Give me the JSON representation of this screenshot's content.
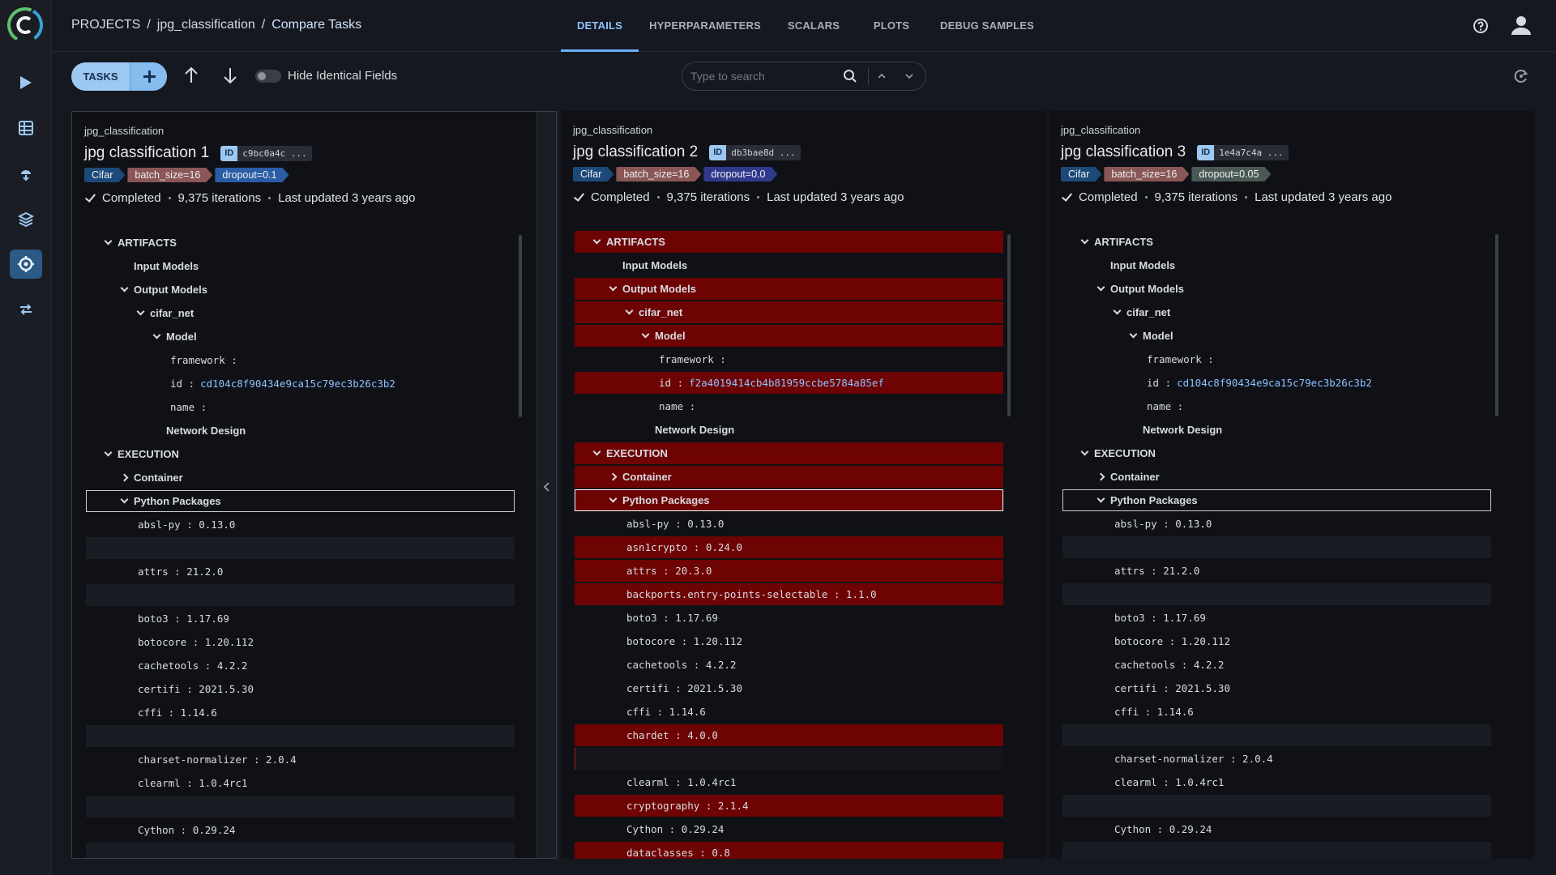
{
  "header": {
    "breadcrumb": [
      "PROJECTS",
      "jpg_classification",
      "Compare Tasks"
    ],
    "breadcrumb_separator": "/",
    "tabs": [
      "DETAILS",
      "HYPERPARAMETERS",
      "SCALARS",
      "PLOTS",
      "DEBUG SAMPLES"
    ],
    "active_tab": 0
  },
  "toolbar": {
    "tasks_button": "TASKS",
    "toggle_label": "Hide Identical Fields",
    "search_placeholder": "Type to search"
  },
  "id_badge_label": "ID",
  "tasks": [
    {
      "project": "jpg_classification",
      "name": "jpg classification 1",
      "id": "c9bc0a4c ...",
      "selected": true,
      "tags": [
        {
          "text": "Cifar",
          "color": "#1c4a78"
        },
        {
          "text": "batch_size=16",
          "color": "#8a5656"
        },
        {
          "text": "dropout=0.1",
          "color": "#2b5ca6"
        }
      ],
      "status": "Completed",
      "iterations": "9,375 iterations",
      "updated": "Last updated 3 years ago",
      "tree": [
        {
          "label": "ARTIFACTS",
          "open": true,
          "children": [
            {
              "label": "Input Models"
            },
            {
              "label": "Output Models",
              "open": true,
              "children": [
                {
                  "label": "cifar_net",
                  "open": true,
                  "children": [
                    {
                      "label": "Model",
                      "open": true,
                      "children": [
                        {
                          "text": "framework :"
                        },
                        {
                          "text": "id :",
                          "value": "cd104c8f90434e9ca15c79ec3b26c3b2"
                        },
                        {
                          "text": "name :"
                        }
                      ]
                    },
                    {
                      "label": "Network Design"
                    }
                  ]
                }
              ]
            }
          ]
        },
        {
          "label": "EXECUTION",
          "open": true,
          "children": [
            {
              "label": "Container",
              "open": false
            },
            {
              "label": "Python Packages",
              "open": true,
              "selected": true,
              "children": [
                {
                  "text": "absl-py : 0.13.0"
                },
                null,
                {
                  "text": "attrs : 21.2.0"
                },
                null,
                {
                  "text": "boto3 : 1.17.69"
                },
                {
                  "text": "botocore : 1.20.112"
                },
                {
                  "text": "cachetools : 4.2.2"
                },
                {
                  "text": "certifi : 2021.5.30"
                },
                {
                  "text": "cffi : 1.14.6"
                },
                null,
                {
                  "text": "charset-normalizer : 2.0.4"
                },
                {
                  "text": "clearml : 1.0.4rc1"
                },
                null,
                {
                  "text": "Cython : 0.29.24"
                },
                null
              ]
            }
          ]
        }
      ]
    },
    {
      "project": "jpg_classification",
      "name": "jpg classification 2",
      "id": "db3bae8d ...",
      "selected": false,
      "tags": [
        {
          "text": "Cifar",
          "color": "#1c4a78"
        },
        {
          "text": "batch_size=16",
          "color": "#8a5656"
        },
        {
          "text": "dropout=0.0",
          "color": "#2f3a8a"
        }
      ],
      "status": "Completed",
      "iterations": "9,375 iterations",
      "updated": "Last updated 3 years ago",
      "tree": [
        {
          "label": "ARTIFACTS",
          "open": true,
          "diff": true,
          "children": [
            {
              "label": "Input Models"
            },
            {
              "label": "Output Models",
              "open": true,
              "diff": true,
              "children": [
                {
                  "label": "cifar_net",
                  "open": true,
                  "diff": true,
                  "children": [
                    {
                      "label": "Model",
                      "open": true,
                      "diff": true,
                      "children": [
                        {
                          "text": "framework :"
                        },
                        {
                          "text": "id :",
                          "value": "f2a4019414cb4b81959ccbe5784a85ef",
                          "diff": true
                        },
                        {
                          "text": "name :"
                        }
                      ]
                    },
                    {
                      "label": "Network Design"
                    }
                  ]
                }
              ]
            }
          ]
        },
        {
          "label": "EXECUTION",
          "open": true,
          "diff": true,
          "children": [
            {
              "label": "Container",
              "open": false,
              "diff": true
            },
            {
              "label": "Python Packages",
              "open": true,
              "selected": true,
              "diff": true,
              "children": [
                {
                  "text": "absl-py : 0.13.0"
                },
                {
                  "text": "asn1crypto : 0.24.0",
                  "diff": true
                },
                {
                  "text": "attrs : 20.3.0",
                  "diff": true
                },
                {
                  "text": "backports.entry-points-selectable : 1.1.0",
                  "diff": true
                },
                {
                  "text": "boto3 : 1.17.69"
                },
                {
                  "text": "botocore : 1.20.112"
                },
                {
                  "text": "cachetools : 4.2.2"
                },
                {
                  "text": "certifi : 2021.5.30"
                },
                {
                  "text": "cffi : 1.14.6"
                },
                {
                  "text": "chardet : 4.0.0",
                  "diff": true
                },
                {
                  "diff": true
                },
                {
                  "text": "clearml : 1.0.4rc1"
                },
                {
                  "text": "cryptography : 2.1.4",
                  "diff": true
                },
                {
                  "text": "Cython : 0.29.24"
                },
                {
                  "text": "dataclasses : 0.8",
                  "diff": true
                }
              ]
            }
          ]
        }
      ]
    },
    {
      "project": "jpg_classification",
      "name": "jpg classification 3",
      "id": "1e4a7c4a ...",
      "selected": false,
      "tags": [
        {
          "text": "Cifar",
          "color": "#1c4a78"
        },
        {
          "text": "batch_size=16",
          "color": "#8a5656"
        },
        {
          "text": "dropout=0.05",
          "color": "#4b5955"
        }
      ],
      "status": "Completed",
      "iterations": "9,375 iterations",
      "updated": "Last updated 3 years ago",
      "tree": [
        {
          "label": "ARTIFACTS",
          "open": true,
          "children": [
            {
              "label": "Input Models"
            },
            {
              "label": "Output Models",
              "open": true,
              "children": [
                {
                  "label": "cifar_net",
                  "open": true,
                  "children": [
                    {
                      "label": "Model",
                      "open": true,
                      "children": [
                        {
                          "text": "framework :"
                        },
                        {
                          "text": "id :",
                          "value": "cd104c8f90434e9ca15c79ec3b26c3b2"
                        },
                        {
                          "text": "name :"
                        }
                      ]
                    },
                    {
                      "label": "Network Design"
                    }
                  ]
                }
              ]
            }
          ]
        },
        {
          "label": "EXECUTION",
          "open": true,
          "children": [
            {
              "label": "Container",
              "open": false
            },
            {
              "label": "Python Packages",
              "open": true,
              "selected": true,
              "children": [
                {
                  "text": "absl-py : 0.13.0"
                },
                null,
                {
                  "text": "attrs : 21.2.0"
                },
                null,
                {
                  "text": "boto3 : 1.17.69"
                },
                {
                  "text": "botocore : 1.20.112"
                },
                {
                  "text": "cachetools : 4.2.2"
                },
                {
                  "text": "certifi : 2021.5.30"
                },
                {
                  "text": "cffi : 1.14.6"
                },
                null,
                {
                  "text": "charset-normalizer : 2.0.4"
                },
                {
                  "text": "clearml : 1.0.4rc1"
                },
                null,
                {
                  "text": "Cython : 0.29.24"
                },
                null
              ]
            }
          ]
        }
      ]
    }
  ]
}
